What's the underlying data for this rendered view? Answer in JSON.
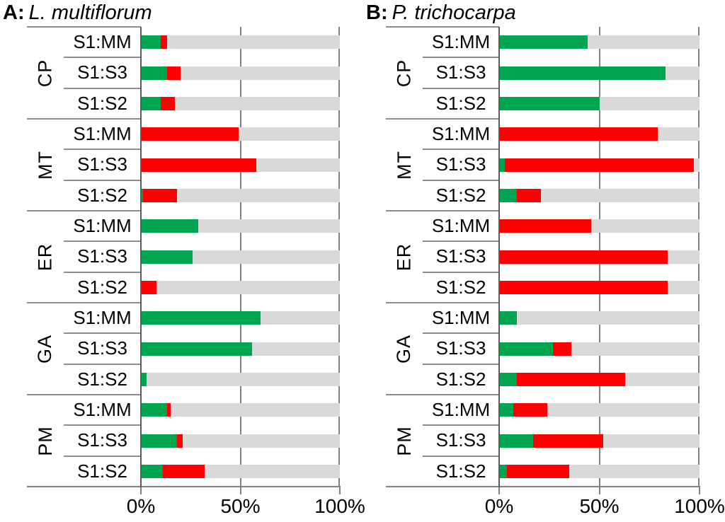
{
  "figure": {
    "x_axis_note": "percentage scale shared by both panels"
  },
  "chart_data": [
    {
      "type": "bar",
      "panel_id": "A",
      "title_prefix": "A:",
      "title": "L. multiflorum",
      "orientation": "horizontal",
      "stacked": true,
      "xlim": [
        0,
        100
      ],
      "x_tick_labels": [
        "0%",
        "50%",
        "100%"
      ],
      "x_tick_values": [
        0,
        50,
        100
      ],
      "grid": "vertical at 50% and 100%",
      "legend_position": "none",
      "series_names": [
        "green",
        "red"
      ],
      "groups": [
        "CP",
        "MT",
        "ER",
        "GA",
        "PM"
      ],
      "row_labels": [
        "S1:MM",
        "S1:S3",
        "S1:S2"
      ],
      "rows": [
        {
          "group": "CP",
          "label": "S1:MM",
          "green": 10,
          "red": 3
        },
        {
          "group": "CP",
          "label": "S1:S3",
          "green": 13,
          "red": 7
        },
        {
          "group": "CP",
          "label": "S1:S2",
          "green": 10,
          "red": 7
        },
        {
          "group": "MT",
          "label": "S1:MM",
          "green": 0,
          "red": 49
        },
        {
          "group": "MT",
          "label": "S1:S3",
          "green": 0,
          "red": 58
        },
        {
          "group": "MT",
          "label": "S1:S2",
          "green": 1,
          "red": 17
        },
        {
          "group": "ER",
          "label": "S1:MM",
          "green": 29,
          "red": 0
        },
        {
          "group": "ER",
          "label": "S1:S3",
          "green": 26,
          "red": 0
        },
        {
          "group": "ER",
          "label": "S1:S2",
          "green": 0,
          "red": 8
        },
        {
          "group": "GA",
          "label": "S1:MM",
          "green": 60,
          "red": 0
        },
        {
          "group": "GA",
          "label": "S1:S3",
          "green": 56,
          "red": 0
        },
        {
          "group": "GA",
          "label": "S1:S2",
          "green": 3,
          "red": 0
        },
        {
          "group": "PM",
          "label": "S1:MM",
          "green": 13,
          "red": 2
        },
        {
          "group": "PM",
          "label": "S1:S3",
          "green": 18,
          "red": 3
        },
        {
          "group": "PM",
          "label": "S1:S2",
          "green": 11,
          "red": 21
        }
      ]
    },
    {
      "type": "bar",
      "panel_id": "B",
      "title_prefix": "B:",
      "title": "P. trichocarpa",
      "orientation": "horizontal",
      "stacked": true,
      "xlim": [
        0,
        100
      ],
      "x_tick_labels": [
        "0%",
        "50%",
        "100%"
      ],
      "x_tick_values": [
        0,
        50,
        100
      ],
      "grid": "vertical at 50% and 100%",
      "legend_position": "none",
      "series_names": [
        "green",
        "red"
      ],
      "groups": [
        "CP",
        "MT",
        "ER",
        "GA",
        "PM"
      ],
      "row_labels": [
        "S1:MM",
        "S1:S3",
        "S1:S2"
      ],
      "rows": [
        {
          "group": "CP",
          "label": "S1:MM",
          "green": 44,
          "red": 0
        },
        {
          "group": "CP",
          "label": "S1:S3",
          "green": 83,
          "red": 0
        },
        {
          "group": "CP",
          "label": "S1:S2",
          "green": 50,
          "red": 0
        },
        {
          "group": "MT",
          "label": "S1:MM",
          "green": 0,
          "red": 79
        },
        {
          "group": "MT",
          "label": "S1:S3",
          "green": 3,
          "red": 94
        },
        {
          "group": "MT",
          "label": "S1:S2",
          "green": 9,
          "red": 12
        },
        {
          "group": "ER",
          "label": "S1:MM",
          "green": 0,
          "red": 46
        },
        {
          "group": "ER",
          "label": "S1:S3",
          "green": 0,
          "red": 84
        },
        {
          "group": "ER",
          "label": "S1:S2",
          "green": 0,
          "red": 84
        },
        {
          "group": "GA",
          "label": "S1:MM",
          "green": 9,
          "red": 0
        },
        {
          "group": "GA",
          "label": "S1:S3",
          "green": 27,
          "red": 9
        },
        {
          "group": "GA",
          "label": "S1:S2",
          "green": 9,
          "red": 54
        },
        {
          "group": "PM",
          "label": "S1:MM",
          "green": 7,
          "red": 17
        },
        {
          "group": "PM",
          "label": "S1:S3",
          "green": 17,
          "red": 35
        },
        {
          "group": "PM",
          "label": "S1:S2",
          "green": 4,
          "red": 31
        }
      ]
    }
  ],
  "colors": {
    "green_segment": "#00A550",
    "red_segment": "#FF0000",
    "track_gray": "#D9D9D9",
    "grid_gray": "#808080",
    "table_line_gray": "#8C8C8C",
    "axis_dark": "#5A5A5A",
    "text_black": "#000000"
  }
}
